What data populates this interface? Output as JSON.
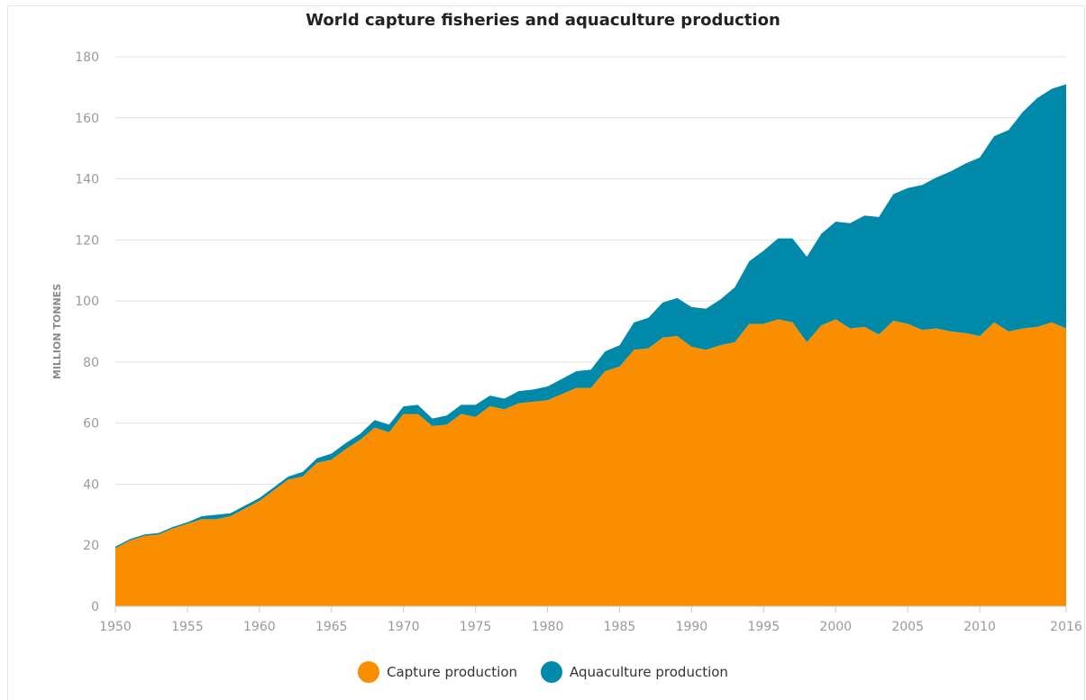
{
  "chart_data": {
    "type": "area",
    "stacked": true,
    "title": "World capture fisheries and aquaculture production",
    "ylabel": "MILLION TONNES",
    "xlabel": "",
    "ylim": [
      0,
      180
    ],
    "xlim": [
      1950,
      2016
    ],
    "y_ticks": [
      "0",
      "20",
      "40",
      "60",
      "80",
      "100",
      "120",
      "140",
      "160",
      "180"
    ],
    "x_ticks": [
      "1950",
      "1955",
      "1960",
      "1965",
      "1970",
      "1975",
      "1980",
      "1985",
      "1990",
      "1995",
      "2000",
      "2005",
      "2010",
      "2016"
    ],
    "grid": true,
    "legend_position": "bottom",
    "x": [
      1950,
      1951,
      1952,
      1953,
      1954,
      1955,
      1956,
      1957,
      1958,
      1959,
      1960,
      1961,
      1962,
      1963,
      1964,
      1965,
      1966,
      1967,
      1968,
      1969,
      1970,
      1971,
      1972,
      1973,
      1974,
      1975,
      1976,
      1977,
      1978,
      1979,
      1980,
      1981,
      1982,
      1983,
      1984,
      1985,
      1986,
      1987,
      1988,
      1989,
      1990,
      1991,
      1992,
      1993,
      1994,
      1995,
      1996,
      1997,
      1998,
      1999,
      2000,
      2001,
      2002,
      2003,
      2004,
      2005,
      2006,
      2007,
      2008,
      2009,
      2010,
      2011,
      2012,
      2013,
      2014,
      2015,
      2016
    ],
    "series": [
      {
        "name": "Capture production",
        "color": "#f98e00",
        "values": [
          19,
          21.5,
          23,
          23.5,
          25.5,
          27,
          28.5,
          28.5,
          29.5,
          32,
          34.5,
          38,
          41.5,
          42.5,
          47,
          48,
          51.5,
          54.5,
          58.5,
          57,
          63,
          63,
          59,
          59.5,
          63,
          62,
          65.5,
          64.5,
          66.5,
          67,
          67.5,
          69.5,
          71.5,
          71.5,
          77,
          78.5,
          84,
          84.5,
          88,
          88.5,
          85,
          84,
          85.5,
          86.5,
          92.5,
          92.5,
          94,
          93,
          86.5,
          92,
          94,
          91,
          91.5,
          89,
          93.5,
          92.5,
          90.5,
          91,
          90,
          89.5,
          88.5,
          93,
          90,
          91,
          91.5,
          93,
          91
        ]
      },
      {
        "name": "Aquaculture production",
        "color": "#0089a8",
        "values": [
          0.5,
          0.5,
          0.5,
          0.5,
          0.5,
          0.5,
          1,
          1.5,
          1,
          1,
          1,
          1,
          1,
          1.5,
          1.5,
          2,
          2,
          2,
          2.5,
          2.5,
          2.5,
          3,
          2.5,
          3,
          3,
          4,
          3.5,
          3.5,
          4,
          4,
          4.5,
          5,
          5.5,
          6,
          6.5,
          7,
          9,
          10,
          11.5,
          12.5,
          13,
          13.5,
          15,
          18,
          20.5,
          24,
          26.5,
          27.5,
          28,
          30,
          32,
          34.5,
          36.5,
          38.5,
          41.5,
          44.5,
          47.5,
          49.5,
          52.5,
          55.5,
          58.5,
          61,
          66,
          71,
          75,
          76.5,
          80
        ]
      }
    ]
  }
}
